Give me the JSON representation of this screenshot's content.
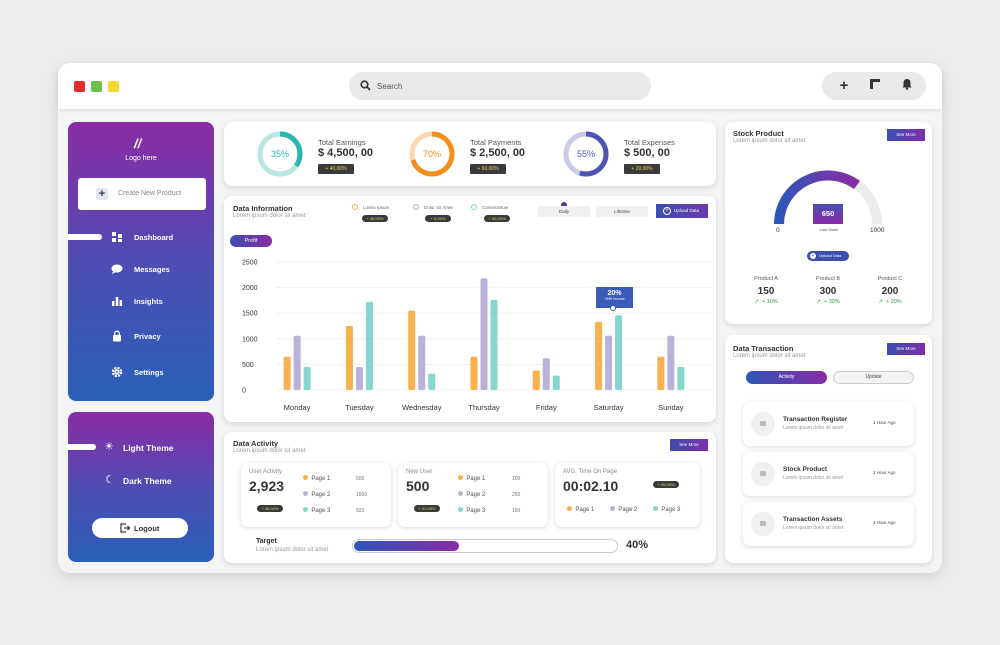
{
  "titlebar": {
    "search_placeholder": "Search",
    "colors": {
      "red": "#e82a2a",
      "green": "#6cc04a",
      "yellow": "#f4dd2a"
    },
    "icons": [
      "plus-icon",
      "window-icon",
      "bell-icon"
    ]
  },
  "sidebar": {
    "logo": "Logo here",
    "create": "Create New Product",
    "items": [
      {
        "label": "Dashboard",
        "icon": "grid-icon"
      },
      {
        "label": "Messages",
        "icon": "chat-icon"
      },
      {
        "label": "Insights",
        "icon": "bar-chart-icon"
      },
      {
        "label": "Privacy",
        "icon": "lock-icon"
      },
      {
        "label": "Settings",
        "icon": "gear-icon"
      }
    ]
  },
  "theme": {
    "light": "Light Theme",
    "dark": "Dark Theme",
    "logout": "Logout"
  },
  "stats": [
    {
      "pct": "35%",
      "pct_value": 35,
      "title": "Total Earnings",
      "value": "$ 4,500, 00",
      "badge": "40,00%",
      "color": "#2bb5ad"
    },
    {
      "pct": "70%",
      "pct_value": 70,
      "title": "Total Payments",
      "value": "$ 2,500, 00",
      "badge": "60,00%",
      "color": "#f2901e"
    },
    {
      "pct": "55%",
      "pct_value": 55,
      "title": "Total Expenses",
      "value": "$ 500, 00",
      "badge": "20,00%",
      "color": "#4e54b4"
    }
  ],
  "datainfo": {
    "title": "Data Information",
    "subtitle": "Lorem ipsum dolor sit amet",
    "legend": [
      {
        "label": "Lorem Ipsum",
        "badge": "40,00%",
        "color": "#f4a93c"
      },
      {
        "label": "Dolor Sit Amet",
        "badge": "0,00%",
        "color": "#b7a7d6"
      },
      {
        "label": "Consectetuer",
        "badge": "00,00%",
        "color": "#7fd3cd"
      }
    ],
    "tab_daily": "Daily",
    "tab_lifetime": "Lifetime",
    "upload": "Upload Data",
    "profit": "Profit",
    "tooltip_value": "20%",
    "tooltip_label": "+999 Income"
  },
  "chart_data": {
    "type": "bar",
    "categories": [
      "Monday",
      "Tuesday",
      "Wednesday",
      "Thursday",
      "Friday",
      "Saturday",
      "Sunday"
    ],
    "yticks": [
      "2500",
      "2000",
      "1500",
      "1000",
      "500",
      "0"
    ],
    "ylim": [
      0,
      2500
    ],
    "series": [
      {
        "values": [
          650,
          1250,
          1550,
          650,
          380,
          1330,
          650
        ],
        "color": "#f8b14d"
      },
      {
        "values": [
          1060,
          450,
          1060,
          2180,
          620,
          1060,
          1060
        ],
        "color": "#bbb0d8"
      },
      {
        "values": [
          450,
          1720,
          320,
          1760,
          280,
          1460,
          450
        ],
        "color": "#86d5cf"
      }
    ]
  },
  "activity": {
    "title": "Data Activity",
    "subtitle": "Lorem ipsum dolor sit amet",
    "see_more": "See More",
    "user": {
      "label": "User Activity",
      "value": "2,923",
      "badge": "00,00%",
      "pages": [
        {
          "label": "Page 1",
          "val": "500"
        },
        {
          "label": "Page 2",
          "val": "1500"
        },
        {
          "label": "Page 3",
          "val": "923"
        }
      ]
    },
    "newuser": {
      "label": "New User",
      "value": "500",
      "badge": "01,00%",
      "pages": [
        {
          "label": "Page 1",
          "val": "100"
        },
        {
          "label": "Page 2",
          "val": "250"
        },
        {
          "label": "Page 3",
          "val": "150"
        }
      ]
    },
    "avg": {
      "label": "AVG. Time On Page",
      "value": "00:02.10",
      "badge": "00,00%",
      "pages": [
        "Page 1",
        "Page 2",
        "Page 3"
      ]
    },
    "target": {
      "label": "Target",
      "sub": "Lorem ipsum dolor sit amet",
      "pct": "40%",
      "fraction": 0.4
    }
  },
  "stock": {
    "title": "Stock Product",
    "subtitle": "Lorem ipsum dolor sit amet",
    "see_more": "See More",
    "gauge_value": "650",
    "gauge_label": "Last Week",
    "gauge_min": "0",
    "gauge_max": "1000",
    "upload": "Upload Data",
    "products": [
      {
        "name": "Product A",
        "val": "150",
        "pct": "10%"
      },
      {
        "name": "Product B",
        "val": "300",
        "pct": "30%"
      },
      {
        "name": "Product C",
        "val": "200",
        "pct": "20%"
      }
    ]
  },
  "transaction": {
    "title": "Data Transaction",
    "subtitle": "Lorem ipsum dolor sit amet",
    "see_more": "See More",
    "tab_activity": "Activity",
    "tab_update": "Update",
    "items": [
      {
        "title": "Transaction Register",
        "sub": "Lorem ipsum dolor sit amet",
        "time": "1 Hour Ago"
      },
      {
        "title": "Stock Product",
        "sub": "Lorem ipsum dolor sit amet",
        "time": "2 Hour Ago"
      },
      {
        "title": "Transaction Assets",
        "sub": "Lorem ipsum dolor sit amet",
        "time": "3 Hour Ago"
      }
    ]
  }
}
